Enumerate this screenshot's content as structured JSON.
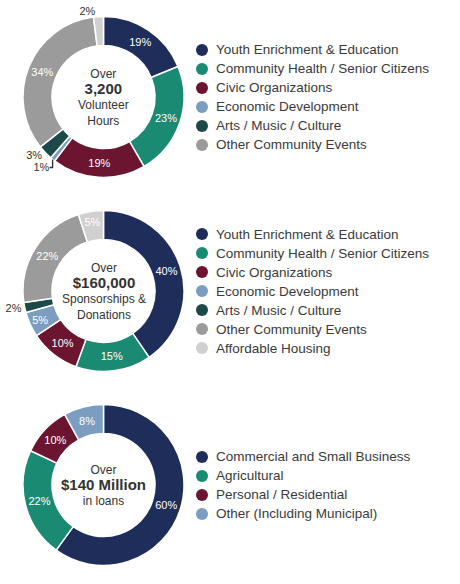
{
  "chart_data": [
    {
      "type": "donut",
      "annotations": [
        "Over",
        "3,200",
        "Volunteer",
        "Hours"
      ],
      "categories": [
        "Youth Enrichment & Education",
        "Community Health / Senior Citizens",
        "Civic Organizations",
        "Economic Development",
        "Arts / Music / Culture",
        "Other Community Events",
        null
      ],
      "values": [
        19,
        23,
        19,
        1,
        3,
        34,
        2
      ],
      "value_labels": [
        "19%",
        "23%",
        "19%",
        "1%",
        "3%",
        "34%",
        "2%"
      ],
      "colors": [
        "#1f2d5a",
        "#1a8a73",
        "#6b1530",
        "#7b9dc0",
        "#1c4a48",
        "#9b9b9b",
        "#d0d0d0"
      ],
      "data_labels": true
    },
    {
      "type": "donut",
      "annotations": [
        "Over",
        "$160,000",
        "Sponsorships &",
        "Donations"
      ],
      "categories": [
        "Youth Enrichment & Education",
        "Community Health / Senior Citizens",
        "Civic Organizations",
        "Economic Development",
        "Arts / Music / Culture",
        "Other Community Events",
        "Affordable Housing"
      ],
      "values": [
        40,
        15,
        10,
        5,
        2,
        22,
        5
      ],
      "value_labels": [
        "40%",
        "15%",
        "10%",
        "5%",
        "2%",
        "22%",
        "5%"
      ],
      "colors": [
        "#1f2d5a",
        "#1a8a73",
        "#6b1530",
        "#7b9dc0",
        "#1c4a48",
        "#9b9b9b",
        "#d0d0d0"
      ],
      "data_labels": true
    },
    {
      "type": "donut",
      "annotations": [
        "Over",
        "$140 Million",
        "in loans"
      ],
      "categories": [
        "Commercial and Small Business",
        "Agricultural",
        "Personal / Residential",
        "Other (Including Municipal)"
      ],
      "values": [
        60,
        22,
        10,
        8
      ],
      "value_labels": [
        "60%",
        "22%",
        "10%",
        "8%"
      ],
      "colors": [
        "#1f2d5a",
        "#1a8a73",
        "#6b1530",
        "#7b9dc0"
      ],
      "data_labels": true
    }
  ]
}
